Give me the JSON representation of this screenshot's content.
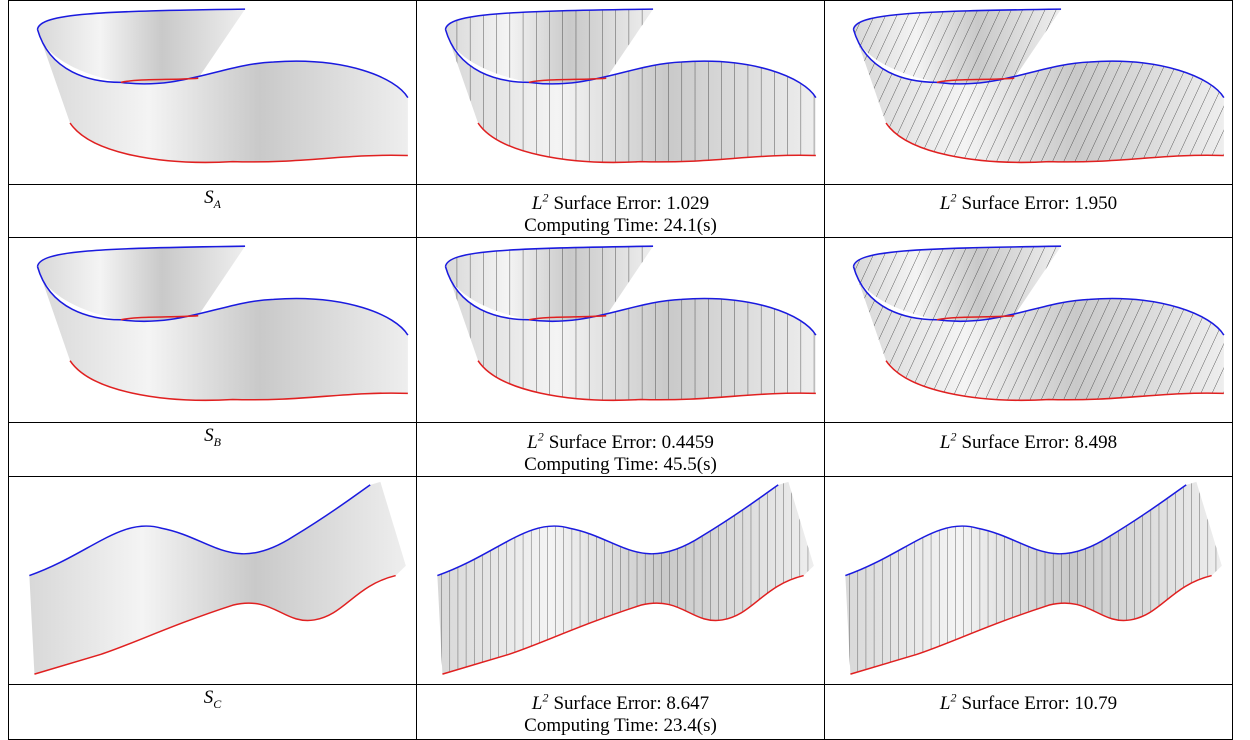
{
  "table": {
    "rows": [
      {
        "cells": [
          {
            "symbol": "S",
            "subscript": "A"
          },
          {
            "symbol": "L",
            "superscript": "2",
            "error": "Surface Error: 1.029",
            "time": "Computing Time: 24.1(s)"
          },
          {
            "symbol": "L",
            "superscript": "2",
            "error": "Surface Error: 1.950"
          }
        ]
      },
      {
        "cells": [
          {
            "symbol": "S",
            "subscript": "B"
          },
          {
            "symbol": "L",
            "superscript": "2",
            "error": "Surface Error: 0.4459",
            "time": "Computing Time: 45.5(s)"
          },
          {
            "symbol": "L",
            "superscript": "2",
            "error": "Surface Error: 8.498"
          }
        ]
      },
      {
        "cells": [
          {
            "symbol": "S",
            "subscript": "C"
          },
          {
            "symbol": "L",
            "superscript": "2",
            "error": "Surface Error: 8.647",
            "time": "Computing Time: 23.4(s)"
          },
          {
            "symbol": "L",
            "superscript": "2",
            "error": "Surface Error: 10.79"
          }
        ]
      }
    ]
  }
}
